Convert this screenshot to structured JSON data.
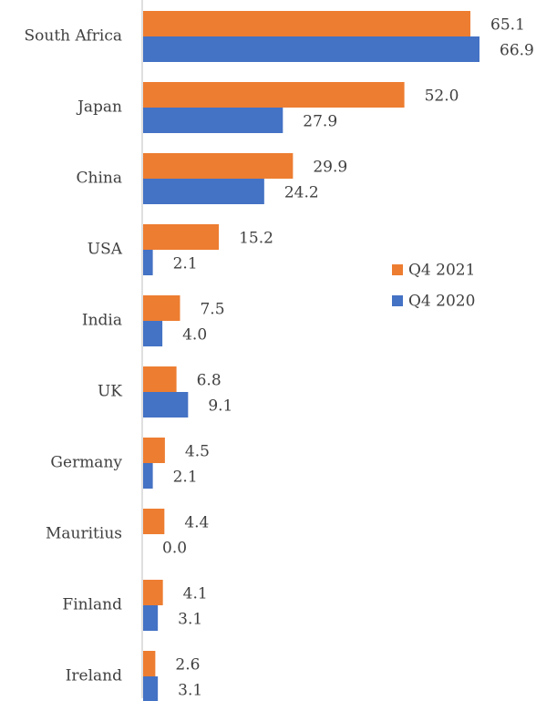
{
  "chart_data": {
    "type": "bar",
    "orientation": "horizontal",
    "categories": [
      "South Africa",
      "Japan",
      "China",
      "USA",
      "India",
      "UK",
      "Germany",
      "Mauritius",
      "Finland",
      "Ireland"
    ],
    "series": [
      {
        "name": "Q4 2021",
        "color": "#ed7d31",
        "values": [
          65.1,
          52.0,
          29.9,
          15.2,
          7.5,
          6.8,
          4.5,
          4.4,
          4.1,
          2.6
        ],
        "value_labels": [
          "65.1",
          "52.0",
          "29.9",
          "15.2",
          "7.5",
          "6.8",
          "4.5",
          "4.4",
          "4.1",
          "2.6"
        ]
      },
      {
        "name": "Q4 2020",
        "color": "#4472c4",
        "values": [
          66.9,
          27.9,
          24.2,
          2.1,
          4.0,
          9.1,
          2.1,
          0.0,
          3.1,
          3.1
        ],
        "value_labels": [
          "66.9",
          "27.9",
          "24.2",
          "2.1",
          "4.0",
          "9.1",
          "2.1",
          "0.0",
          "3.1",
          "3.1"
        ]
      }
    ],
    "legend": "right"
  }
}
